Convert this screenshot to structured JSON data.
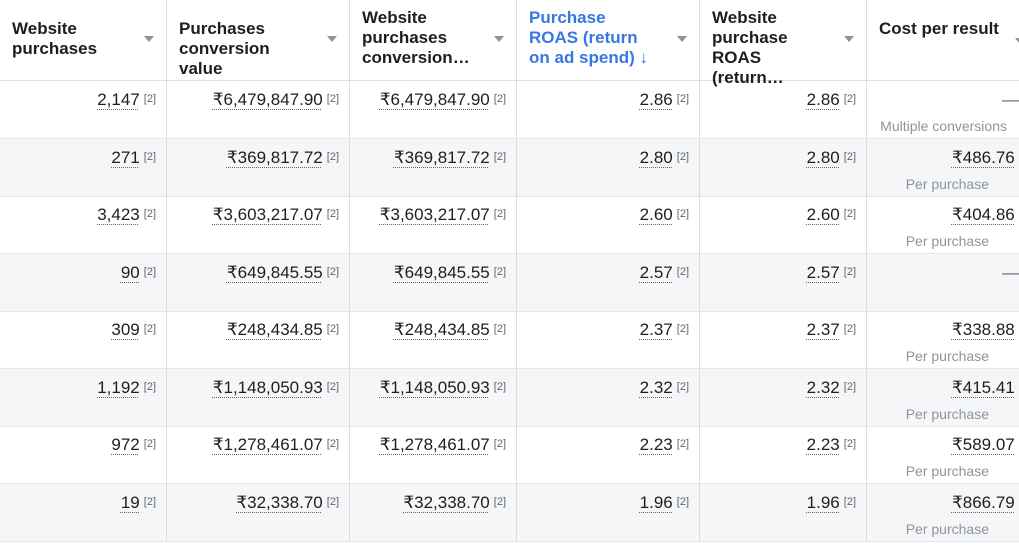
{
  "headers": [
    {
      "label": "Website purchases",
      "sorted": false
    },
    {
      "label": "Purchases conversion value",
      "sorted": false
    },
    {
      "label": "Website purchases conversion…",
      "sorted": false
    },
    {
      "label": "Purchase ROAS (return on ad spend) ↓",
      "sorted": true
    },
    {
      "label": "Website purchase ROAS (return…",
      "sorted": false
    },
    {
      "label": "Cost per result",
      "sorted": false
    }
  ],
  "note_marker": "[2]",
  "rows": [
    {
      "website_purchases": "2,147",
      "purchases_conversion_value": "₹6,479,847.90",
      "website_conversion_value": "₹6,479,847.90",
      "purchase_roas": "2.86",
      "website_roas": "2.86",
      "cost_per_result": "—",
      "cost_subtext": "Multiple conversions"
    },
    {
      "website_purchases": "271",
      "purchases_conversion_value": "₹369,817.72",
      "website_conversion_value": "₹369,817.72",
      "purchase_roas": "2.80",
      "website_roas": "2.80",
      "cost_per_result": "₹486.76",
      "cost_subtext": "Per purchase"
    },
    {
      "website_purchases": "3,423",
      "purchases_conversion_value": "₹3,603,217.07",
      "website_conversion_value": "₹3,603,217.07",
      "purchase_roas": "2.60",
      "website_roas": "2.60",
      "cost_per_result": "₹404.86",
      "cost_subtext": "Per purchase"
    },
    {
      "website_purchases": "90",
      "purchases_conversion_value": "₹649,845.55",
      "website_conversion_value": "₹649,845.55",
      "purchase_roas": "2.57",
      "website_roas": "2.57",
      "cost_per_result": "—",
      "cost_subtext": ""
    },
    {
      "website_purchases": "309",
      "purchases_conversion_value": "₹248,434.85",
      "website_conversion_value": "₹248,434.85",
      "purchase_roas": "2.37",
      "website_roas": "2.37",
      "cost_per_result": "₹338.88",
      "cost_subtext": "Per purchase"
    },
    {
      "website_purchases": "1,192",
      "purchases_conversion_value": "₹1,148,050.93",
      "website_conversion_value": "₹1,148,050.93",
      "purchase_roas": "2.32",
      "website_roas": "2.32",
      "cost_per_result": "₹415.41",
      "cost_subtext": "Per purchase"
    },
    {
      "website_purchases": "972",
      "purchases_conversion_value": "₹1,278,461.07",
      "website_conversion_value": "₹1,278,461.07",
      "purchase_roas": "2.23",
      "website_roas": "2.23",
      "cost_per_result": "₹589.07",
      "cost_subtext": "Per purchase"
    },
    {
      "website_purchases": "19",
      "purchases_conversion_value": "₹32,338.70",
      "website_conversion_value": "₹32,338.70",
      "purchase_roas": "1.96",
      "website_roas": "1.96",
      "cost_per_result": "₹866.79",
      "cost_subtext": "Per purchase"
    }
  ]
}
